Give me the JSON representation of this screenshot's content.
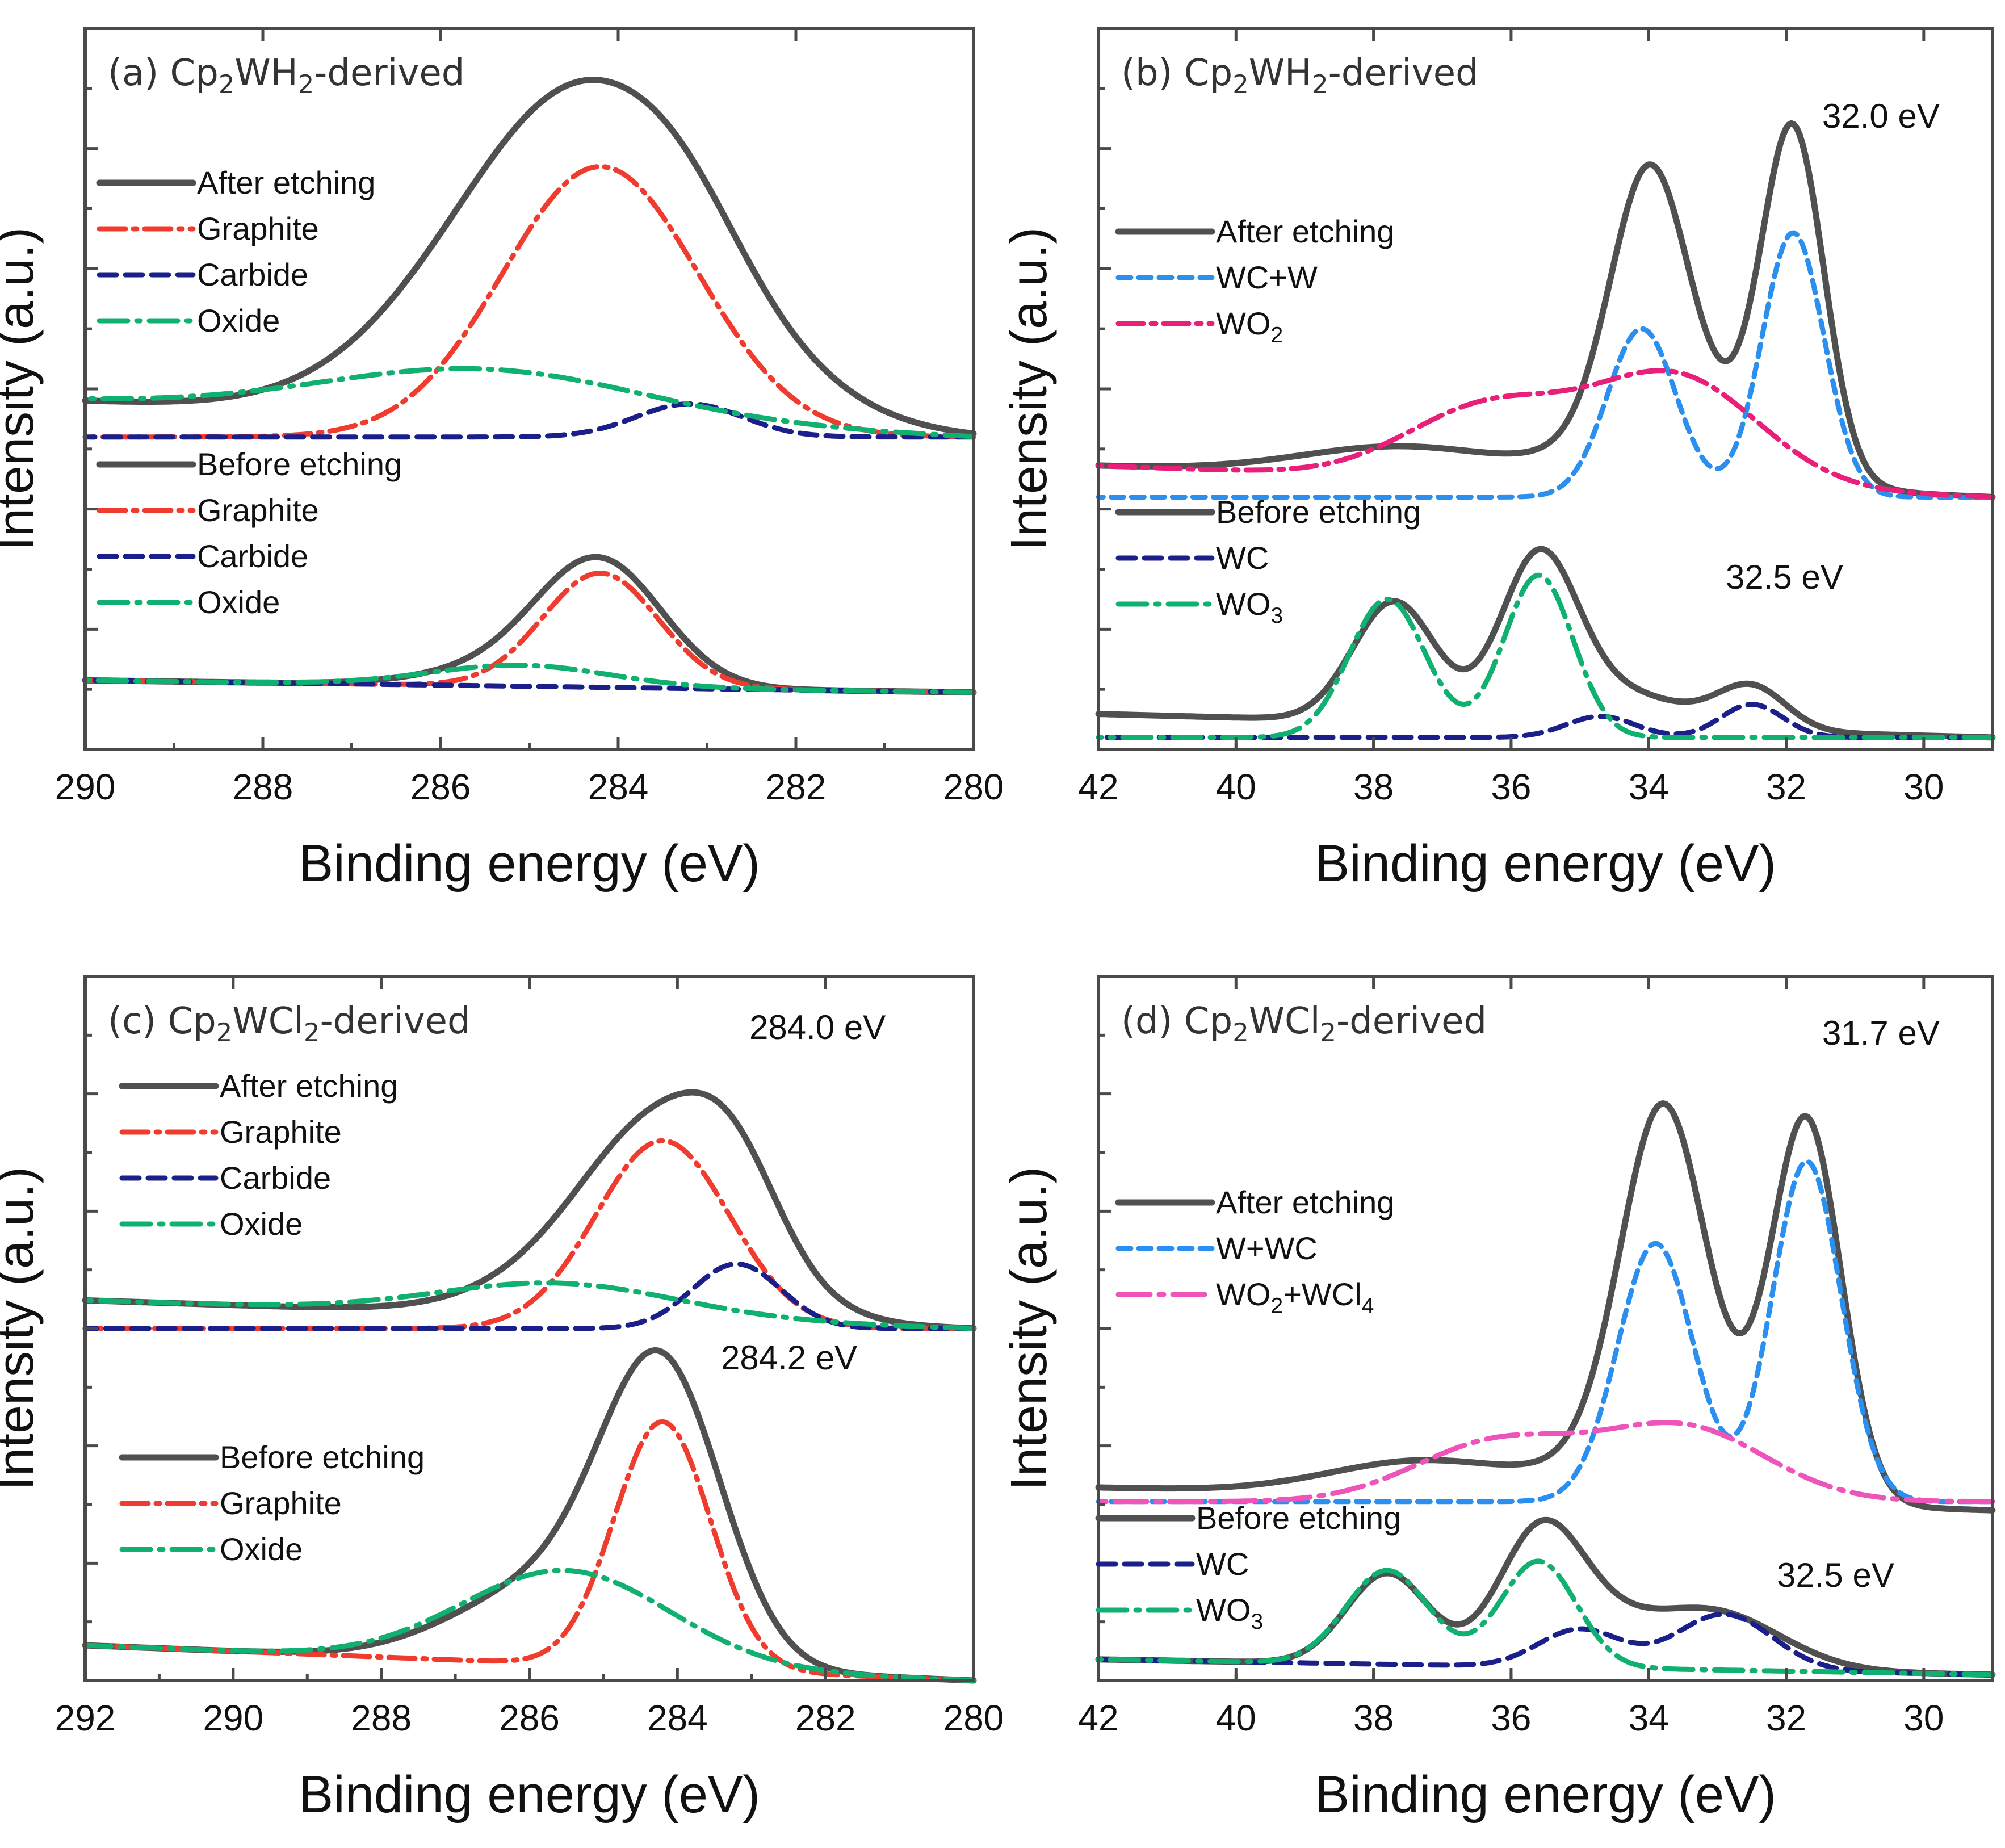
{
  "colors": {
    "total": "#505050",
    "graphite": "#f03c2e",
    "carbide": "#1a1f8a",
    "oxide": "#10b070",
    "wcw": "#2b8fef",
    "wo2": "#e8207a",
    "wc": "#1a1f8a",
    "wo3": "#10b070",
    "wo2wcl4": "#ee55bb"
  },
  "chart_data": [
    {
      "id": "a",
      "type": "line",
      "title": "(a) Cp2WH2-derived",
      "xlabel": "Binding energy (eV)",
      "ylabel": "Intensity (a.u.)",
      "xlim": [
        290,
        280
      ],
      "ylim": [
        0,
        12
      ],
      "xticks": [
        290,
        288,
        286,
        284,
        282,
        280
      ],
      "xtick_labels": [
        "290",
        "288",
        "286",
        "284",
        "282",
        "280"
      ],
      "legend_groups": [
        {
          "entries": [
            {
              "key": "total",
              "label": "After etching"
            },
            {
              "key": "graphite",
              "label": "Graphite"
            },
            {
              "key": "carbide",
              "label": "Carbide"
            },
            {
              "key": "oxide",
              "label": "Oxide"
            }
          ]
        },
        {
          "entries": [
            {
              "key": "total",
              "label": "Before etching"
            },
            {
              "key": "graphite",
              "label": "Graphite"
            },
            {
              "key": "carbide",
              "label": "Carbide"
            },
            {
              "key": "oxide",
              "label": "Oxide"
            }
          ]
        }
      ],
      "annotations": [],
      "series": [
        {
          "name": "After etching",
          "key": "total",
          "baseline": 5.2,
          "slope": 0.06,
          "peaks": [
            [
              284.2,
              5.0,
              1.4
            ],
            [
              285.5,
              0.9,
              1.4
            ],
            [
              283.2,
              0.4,
              0.6
            ]
          ]
        },
        {
          "name": "Graphite (after)",
          "key": "graphite",
          "baseline": 5.2,
          "slope": 0,
          "peaks": [
            [
              284.2,
              4.5,
              1.1
            ]
          ]
        },
        {
          "name": "Carbide (after)",
          "key": "carbide",
          "baseline": 5.2,
          "slope": 0,
          "peaks": [
            [
              283.2,
              0.55,
              0.6
            ]
          ]
        },
        {
          "name": "Oxide (after)",
          "key": "oxide",
          "baseline": 5.2,
          "slope": 0.06,
          "peaks": [
            [
              285.5,
              0.8,
              1.8
            ]
          ]
        },
        {
          "name": "Before etching",
          "key": "total",
          "baseline": 0.95,
          "slope": 0.02,
          "peaks": [
            [
              284.2,
              2.0,
              0.7
            ],
            [
              285.2,
              0.3,
              0.9
            ]
          ]
        },
        {
          "name": "Graphite (before)",
          "key": "graphite",
          "baseline": 0.95,
          "slope": 0.02,
          "peaks": [
            [
              284.2,
              1.9,
              0.65
            ]
          ]
        },
        {
          "name": "Carbide (before)",
          "key": "carbide",
          "baseline": 0.95,
          "slope": 0.02,
          "peaks": []
        },
        {
          "name": "Oxide (before)",
          "key": "oxide",
          "baseline": 0.95,
          "slope": 0.02,
          "peaks": [
            [
              285.1,
              0.35,
              1.0
            ]
          ]
        }
      ]
    },
    {
      "id": "b",
      "type": "line",
      "title": "(b) Cp2WH2-derived",
      "xlabel": "Binding energy (eV)",
      "ylabel": "Intensity (a.u.)",
      "xlim": [
        42,
        29
      ],
      "ylim": [
        0,
        12
      ],
      "xticks": [
        42,
        40,
        38,
        36,
        34,
        32,
        30
      ],
      "xtick_labels": [
        "42",
        "40",
        "38",
        "36",
        "34",
        "32",
        "30"
      ],
      "legend_groups": [
        {
          "entries": [
            {
              "key": "total",
              "label": "After etching"
            },
            {
              "key": "wcw",
              "label": "WC+W"
            },
            {
              "key": "wo2",
              "label": "WO2"
            }
          ]
        },
        {
          "entries": [
            {
              "key": "total",
              "label": "Before etching"
            },
            {
              "key": "wc",
              "label": "WC"
            },
            {
              "key": "wo3",
              "label": "WO3"
            }
          ]
        }
      ],
      "annotations": [
        "32.0 eV",
        "32.5 eV"
      ],
      "series": [
        {
          "name": "After etching",
          "key": "total",
          "baseline": 4.2,
          "slope": 0.04,
          "peaks": [
            [
              34.0,
              4.2,
              0.55
            ],
            [
              31.9,
              5.6,
              0.45
            ],
            [
              33.5,
              1.2,
              1.2
            ],
            [
              37.5,
              0.5,
              1.5
            ]
          ]
        },
        {
          "name": "WC+W",
          "key": "wcw",
          "baseline": 4.2,
          "slope": 0,
          "peaks": [
            [
              34.1,
              2.8,
              0.5
            ],
            [
              31.9,
              4.4,
              0.45
            ]
          ]
        },
        {
          "name": "WO2",
          "key": "wo2",
          "baseline": 4.2,
          "slope": 0.04,
          "peaks": [
            [
              33.6,
              1.8,
              1.2
            ],
            [
              36.3,
              1.2,
              1.2
            ]
          ]
        },
        {
          "name": "Before etching",
          "key": "total",
          "baseline": 0.2,
          "slope": 0.03,
          "peaks": [
            [
              37.7,
              2.0,
              0.6
            ],
            [
              35.6,
              2.6,
              0.55
            ],
            [
              32.5,
              0.7,
              0.5
            ],
            [
              34.5,
              0.6,
              1.0
            ]
          ]
        },
        {
          "name": "WC",
          "key": "wc",
          "baseline": 0.2,
          "slope": 0,
          "peaks": [
            [
              34.7,
              0.35,
              0.5
            ],
            [
              32.5,
              0.55,
              0.45
            ]
          ]
        },
        {
          "name": "WO3",
          "key": "wo3",
          "baseline": 0.2,
          "slope": 0,
          "peaks": [
            [
              37.8,
              2.3,
              0.55
            ],
            [
              35.6,
              2.7,
              0.5
            ]
          ]
        }
      ]
    },
    {
      "id": "c",
      "type": "line",
      "title": "(c) Cp2WCl2-derived",
      "xlabel": "Binding energy (eV)",
      "ylabel": "Intensity (a.u.)",
      "xlim": [
        292,
        280
      ],
      "ylim": [
        0,
        12
      ],
      "xticks": [
        292,
        290,
        288,
        286,
        284,
        282,
        280
      ],
      "xtick_labels": [
        "292",
        "290",
        "288",
        "286",
        "284",
        "282",
        "280"
      ],
      "legend_groups": [
        {
          "entries": [
            {
              "key": "total",
              "label": "After etching"
            },
            {
              "key": "graphite",
              "label": "Graphite"
            },
            {
              "key": "carbide",
              "label": "Carbide"
            },
            {
              "key": "oxide",
              "label": "Oxide"
            }
          ]
        },
        {
          "entries": [
            {
              "key": "total",
              "label": "Before etching"
            },
            {
              "key": "graphite",
              "label": "Graphite"
            },
            {
              "key": "oxide",
              "label": "Oxide"
            }
          ]
        }
      ],
      "annotations": [
        "284.0 eV",
        "284.2 eV"
      ],
      "series": [
        {
          "name": "After etching",
          "key": "total",
          "baseline": 6.0,
          "slope": 0.04,
          "peaks": [
            [
              284.1,
              3.2,
              1.1
            ],
            [
              285.5,
              0.5,
              1.2
            ],
            [
              283.2,
              1.0,
              0.6
            ]
          ]
        },
        {
          "name": "Graphite (after)",
          "key": "graphite",
          "baseline": 6.0,
          "slope": 0,
          "peaks": [
            [
              284.2,
              3.2,
              0.9
            ]
          ]
        },
        {
          "name": "Carbide (after)",
          "key": "carbide",
          "baseline": 6.0,
          "slope": 0,
          "peaks": [
            [
              283.2,
              1.1,
              0.6
            ]
          ]
        },
        {
          "name": "Oxide (after)",
          "key": "oxide",
          "baseline": 6.0,
          "slope": 0.04,
          "peaks": [
            [
              285.6,
              0.55,
              1.6
            ]
          ]
        },
        {
          "name": "Before etching",
          "key": "total",
          "baseline": 0.0,
          "slope": 0.05,
          "peaks": [
            [
              284.2,
              4.6,
              0.8
            ],
            [
              285.6,
              1.4,
              1.3
            ]
          ]
        },
        {
          "name": "Graphite (before)",
          "key": "graphite",
          "baseline": 0.0,
          "slope": 0.05,
          "peaks": [
            [
              284.2,
              4.2,
              0.65
            ]
          ]
        },
        {
          "name": "Oxide (before)",
          "key": "oxide",
          "baseline": 0.0,
          "slope": 0.05,
          "peaks": [
            [
              285.5,
              1.6,
              1.4
            ]
          ]
        }
      ]
    },
    {
      "id": "d",
      "type": "line",
      "title": "(d) Cp2WCl2-derived",
      "xlabel": "Binding energy (eV)",
      "ylabel": "Intensity (a.u.)",
      "xlim": [
        42,
        29
      ],
      "ylim": [
        0,
        12
      ],
      "xticks": [
        42,
        40,
        38,
        36,
        34,
        32,
        30
      ],
      "xtick_labels": [
        "42",
        "40",
        "38",
        "36",
        "34",
        "32",
        "30"
      ],
      "legend_groups": [
        {
          "entries": [
            {
              "key": "total",
              "label": "After etching"
            },
            {
              "key": "wcw",
              "label": "W+WC"
            },
            {
              "key": "wo2wcl4",
              "label": "WO2+WCl4"
            }
          ]
        },
        {
          "entries": [
            {
              "key": "total",
              "label": "Before etching"
            },
            {
              "key": "wc",
              "label": "WC"
            },
            {
              "key": "wo3",
              "label": "WO3"
            }
          ]
        }
      ],
      "annotations": [
        "31.7 eV",
        "32.5 eV"
      ],
      "series": [
        {
          "name": "After etching",
          "key": "total",
          "baseline": 2.9,
          "slope": 0.03,
          "peaks": [
            [
              33.8,
              5.5,
              0.6
            ],
            [
              31.7,
              6.2,
              0.5
            ],
            [
              33.5,
              1.3,
              1.2
            ],
            [
              37.2,
              0.6,
              1.4
            ]
          ]
        },
        {
          "name": "W+WC",
          "key": "wcw",
          "baseline": 3.05,
          "slope": 0,
          "peaks": [
            [
              33.9,
              4.4,
              0.55
            ],
            [
              31.7,
              5.8,
              0.5
            ]
          ]
        },
        {
          "name": "WO2+WCl4",
          "key": "wo2wcl4",
          "baseline": 3.05,
          "slope": 0,
          "peaks": [
            [
              33.5,
              1.25,
              1.2
            ],
            [
              36.2,
              1.0,
              1.2
            ]
          ]
        },
        {
          "name": "Before etching",
          "key": "total",
          "baseline": 0.1,
          "slope": 0.02,
          "peaks": [
            [
              37.8,
              1.55,
              0.6
            ],
            [
              35.6,
              1.9,
              0.6
            ],
            [
              33.1,
              1.0,
              1.0
            ],
            [
              35.0,
              0.7,
              0.8
            ]
          ]
        },
        {
          "name": "WC",
          "key": "wc",
          "baseline": 0.1,
          "slope": 0.02,
          "peaks": [
            [
              35.0,
              0.65,
              0.6
            ],
            [
              32.9,
              0.95,
              0.7
            ]
          ]
        },
        {
          "name": "WO3",
          "key": "wo3",
          "baseline": 0.1,
          "slope": 0.02,
          "peaks": [
            [
              37.8,
              1.6,
              0.6
            ],
            [
              35.6,
              1.8,
              0.55
            ]
          ]
        }
      ]
    }
  ]
}
